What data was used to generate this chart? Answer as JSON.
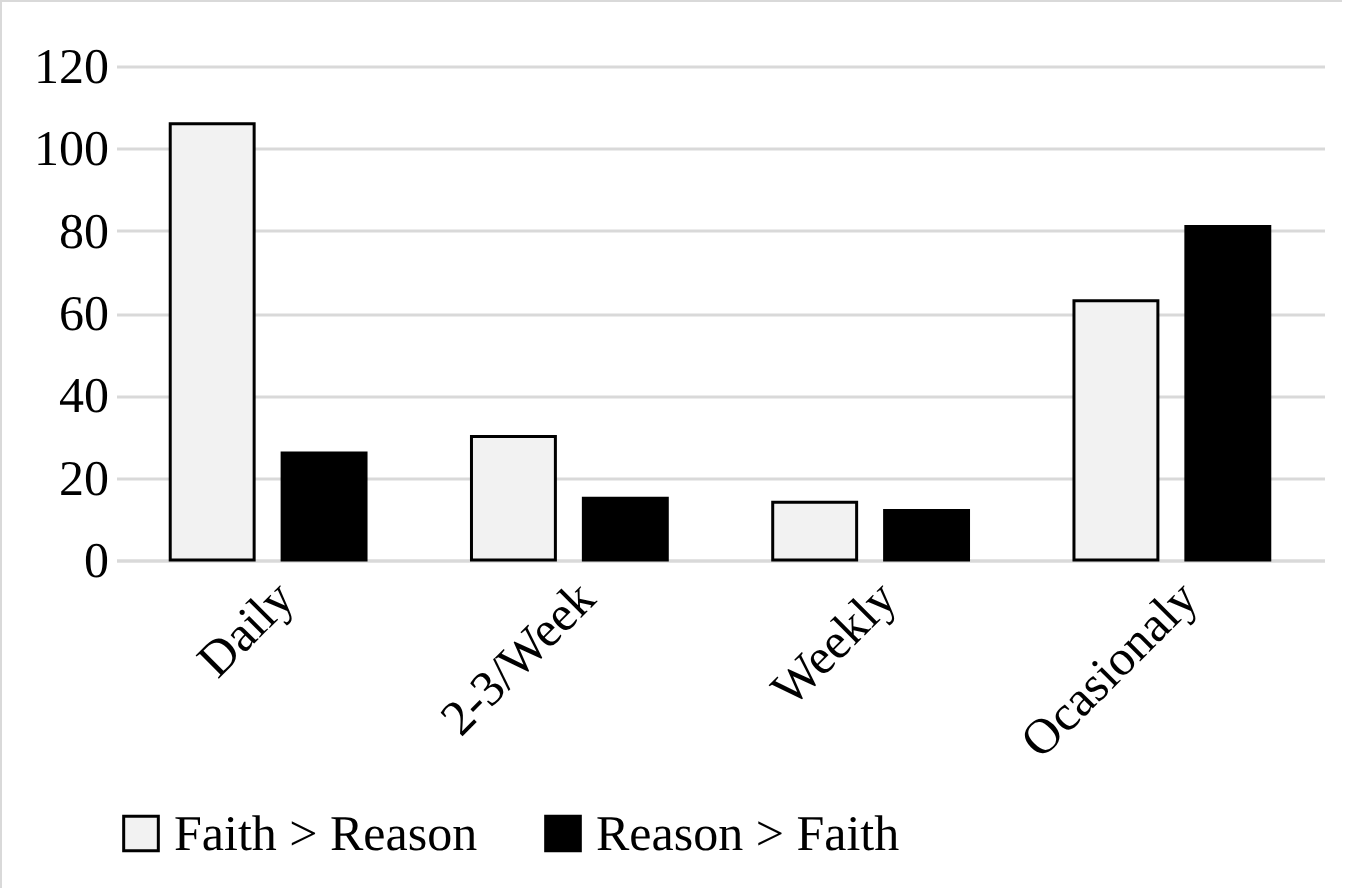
{
  "chart_data": {
    "type": "bar",
    "categories": [
      "Daily",
      "2-3/Week",
      "Weekly",
      "Ocasionaly"
    ],
    "series": [
      {
        "name": "Faith > Reason",
        "color": "#f2f2f2",
        "values": [
          106,
          30,
          14,
          63
        ]
      },
      {
        "name": "Reason > Faith",
        "color": "#000000",
        "values": [
          26,
          15,
          12,
          81
        ]
      }
    ],
    "ylim": [
      0,
      120
    ],
    "yticks": [
      0,
      20,
      40,
      60,
      80,
      100,
      120
    ],
    "grid": "y",
    "legend": "bottom"
  }
}
